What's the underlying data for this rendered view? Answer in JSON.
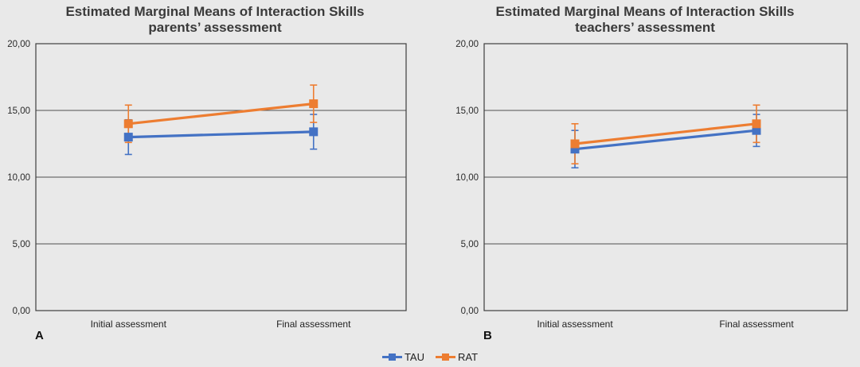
{
  "figure": {
    "background": "#e9e9e9",
    "gridline_color": "#4f4f4f",
    "border_color": "#3e3e3e"
  },
  "legend": {
    "position": "bottom-center",
    "items": [
      {
        "label": "TAU",
        "color": "#4472C4"
      },
      {
        "label": "RAT",
        "color": "#ED7D31"
      }
    ]
  },
  "chart_data": [
    {
      "type": "line",
      "panel_label": "A",
      "title": "Estimated Marginal Means of Interaction Skills",
      "subtitle": "parents’ assessment",
      "categories": [
        "Initial assessment",
        "Final assessment"
      ],
      "ylim": [
        0,
        20
      ],
      "grid": true,
      "error_bars": true,
      "yticks": [
        {
          "value": 0,
          "label": "0,00"
        },
        {
          "value": 5,
          "label": "5,00"
        },
        {
          "value": 10,
          "label": "10,00"
        },
        {
          "value": 15,
          "label": "15,00"
        },
        {
          "value": 20,
          "label": "20,00"
        }
      ],
      "series": [
        {
          "name": "TAU",
          "color": "#4472C4",
          "values": [
            13.0,
            13.4
          ],
          "error_low": [
            11.7,
            12.1
          ],
          "error_high": [
            14.3,
            14.7
          ]
        },
        {
          "name": "RAT",
          "color": "#ED7D31",
          "values": [
            14.0,
            15.5
          ],
          "error_low": [
            12.6,
            14.1
          ],
          "error_high": [
            15.4,
            16.9
          ]
        }
      ]
    },
    {
      "type": "line",
      "panel_label": "B",
      "title": "Estimated Marginal Means of Interaction Skills",
      "subtitle": "teachers’ assessment",
      "categories": [
        "Initial assessment",
        "Final assessment"
      ],
      "ylim": [
        0,
        20
      ],
      "grid": true,
      "error_bars": true,
      "yticks": [
        {
          "value": 0,
          "label": "0,00"
        },
        {
          "value": 5,
          "label": "5,00"
        },
        {
          "value": 10,
          "label": "10,00"
        },
        {
          "value": 15,
          "label": "15,00"
        },
        {
          "value": 20,
          "label": "20,00"
        }
      ],
      "series": [
        {
          "name": "TAU",
          "color": "#4472C4",
          "values": [
            12.1,
            13.5
          ],
          "error_low": [
            10.7,
            12.3
          ],
          "error_high": [
            13.5,
            14.7
          ]
        },
        {
          "name": "RAT",
          "color": "#ED7D31",
          "values": [
            12.5,
            14.0
          ],
          "error_low": [
            11.0,
            12.6
          ],
          "error_high": [
            14.0,
            15.4
          ]
        }
      ]
    }
  ]
}
